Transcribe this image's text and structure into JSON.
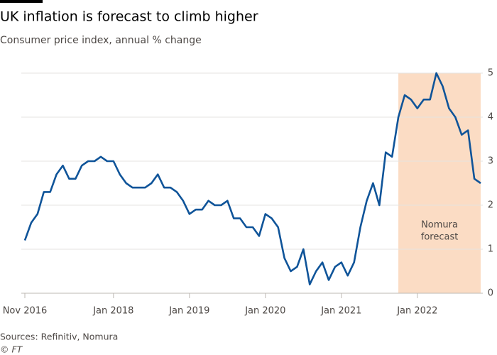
{
  "chart_data": {
    "type": "line",
    "title": "UK inflation is forecast to climb higher",
    "subtitle": "Consumer price index, annual % change",
    "source": "Sources: Refinitiv, Nomura",
    "credit": "© FT",
    "x": [
      "2016-11",
      "2016-12",
      "2017-01",
      "2017-02",
      "2017-03",
      "2017-04",
      "2017-05",
      "2017-06",
      "2017-07",
      "2017-08",
      "2017-09",
      "2017-10",
      "2017-11",
      "2017-12",
      "2018-01",
      "2018-02",
      "2018-03",
      "2018-04",
      "2018-05",
      "2018-06",
      "2018-07",
      "2018-08",
      "2018-09",
      "2018-10",
      "2018-11",
      "2018-12",
      "2019-01",
      "2019-02",
      "2019-03",
      "2019-04",
      "2019-05",
      "2019-06",
      "2019-07",
      "2019-08",
      "2019-09",
      "2019-10",
      "2019-11",
      "2019-12",
      "2020-01",
      "2020-02",
      "2020-03",
      "2020-04",
      "2020-05",
      "2020-06",
      "2020-07",
      "2020-08",
      "2020-09",
      "2020-10",
      "2020-11",
      "2020-12",
      "2021-01",
      "2021-02",
      "2021-03",
      "2021-04",
      "2021-05",
      "2021-06",
      "2021-07",
      "2021-08",
      "2021-09",
      "2021-10",
      "2021-11",
      "2021-12",
      "2022-01",
      "2022-02",
      "2022-03",
      "2022-04",
      "2022-05",
      "2022-06",
      "2022-07",
      "2022-08",
      "2022-09",
      "2022-10",
      "2022-11"
    ],
    "series": [
      {
        "color": "#0f5499",
        "values": [
          1.2,
          1.6,
          1.8,
          2.3,
          2.3,
          2.7,
          2.9,
          2.6,
          2.6,
          2.9,
          3.0,
          3.0,
          3.1,
          3.0,
          3.0,
          2.7,
          2.5,
          2.4,
          2.4,
          2.4,
          2.5,
          2.7,
          2.4,
          2.4,
          2.3,
          2.1,
          1.8,
          1.9,
          1.9,
          2.1,
          2.0,
          2.0,
          2.1,
          1.7,
          1.7,
          1.5,
          1.5,
          1.3,
          1.8,
          1.7,
          1.5,
          0.8,
          0.5,
          0.6,
          1.0,
          0.2,
          0.5,
          0.7,
          0.3,
          0.6,
          0.7,
          0.4,
          0.7,
          1.5,
          2.1,
          2.5,
          2.0,
          3.2,
          3.1,
          4.0,
          4.5,
          4.4,
          4.2,
          4.4,
          4.4,
          5.0,
          4.7,
          4.2,
          4.0,
          3.6,
          3.7,
          2.6,
          2.5
        ]
      }
    ],
    "xticks": [
      {
        "value": "2016-11",
        "label": "Nov 2016"
      },
      {
        "value": "2018-01",
        "label": "Jan 2018"
      },
      {
        "value": "2019-01",
        "label": "Jan 2019"
      },
      {
        "value": "2020-01",
        "label": "Jan 2020"
      },
      {
        "value": "2021-01",
        "label": "Jan 2021"
      },
      {
        "value": "2022-01",
        "label": "Jan 2022"
      }
    ],
    "ylim": [
      0,
      5
    ],
    "yticks": [
      0,
      1,
      2,
      3,
      4,
      5
    ],
    "grid": true,
    "shaded_region": {
      "from": "2021-10",
      "to": "2022-11",
      "color": "#fbdcc4",
      "label": [
        "Nomura",
        "forecast"
      ]
    }
  }
}
